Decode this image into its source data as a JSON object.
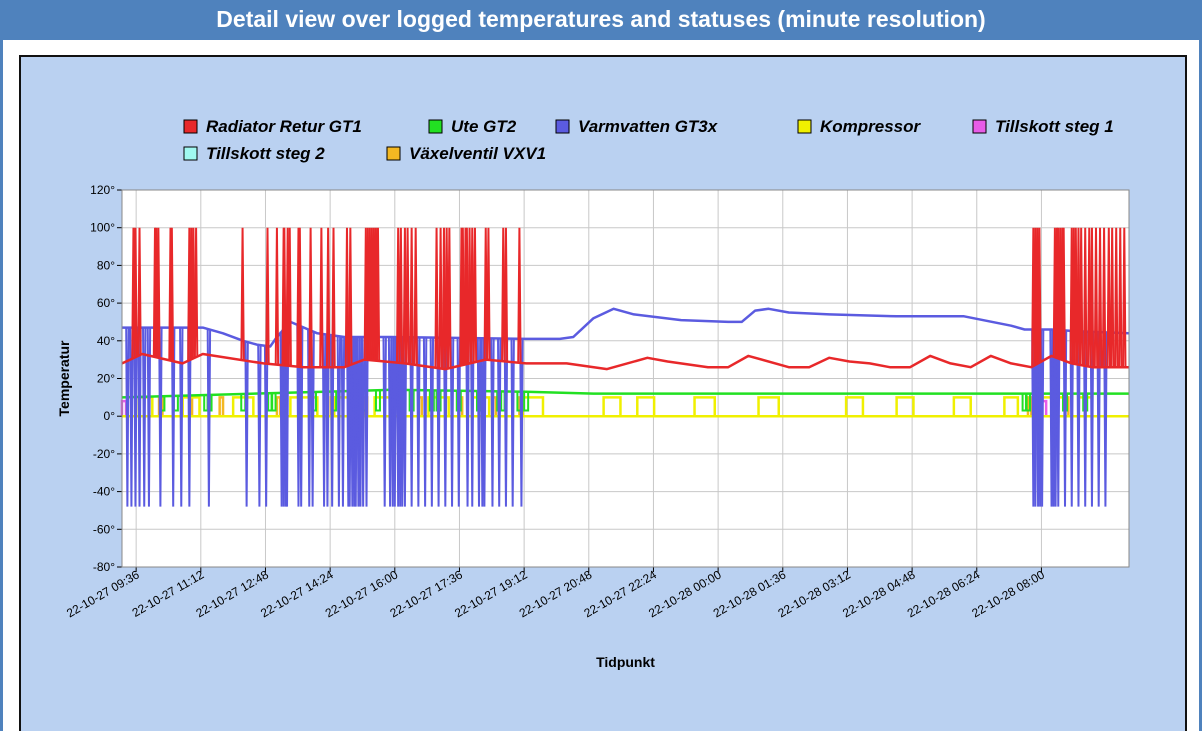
{
  "header": {
    "title": "Detail view over logged temperatures and statuses (minute resolution)"
  },
  "colors": {
    "header_bg": "#4f82bd",
    "panel_bg": "#bad1f1",
    "plot_bg": "#ffffff",
    "grid": "#c8c8c8"
  },
  "chart_data": {
    "type": "line",
    "title": "",
    "xlabel": "Tidpunkt",
    "ylabel": "Temperatur",
    "ylim": [
      -80,
      120
    ],
    "yticks": [
      -80,
      -60,
      -40,
      -20,
      0,
      20,
      40,
      60,
      80,
      100,
      120
    ],
    "ytick_labels": [
      "-80°",
      "-60°",
      "-40°",
      "-20°",
      "0°",
      "20°",
      "40°",
      "60°",
      "80°",
      "100°",
      "120°"
    ],
    "xlim_minutes": [
      0,
      1495
    ],
    "x_unit": "minutes since 22-10-27 09:15",
    "xticks_minutes": [
      21,
      117,
      213,
      309,
      405,
      501,
      597,
      693,
      789,
      885,
      981,
      1077,
      1173,
      1269,
      1365
    ],
    "xtick_labels": [
      "22-10-27 09:36",
      "22-10-27 11:12",
      "22-10-27 12:48",
      "22-10-27 14:24",
      "22-10-27 16:00",
      "22-10-27 17:36",
      "22-10-27 19:12",
      "22-10-27 20:48",
      "22-10-27 22:24",
      "22-10-28 00:00",
      "22-10-28 01:36",
      "22-10-28 03:12",
      "22-10-28 04:48",
      "22-10-28 06:24",
      "22-10-28 08:00"
    ],
    "grid": true,
    "legend_position": "top",
    "series": [
      {
        "name": "Radiator Retur GT1",
        "color": "#e8282a",
        "x": [
          0,
          30,
          90,
          120,
          210,
          270,
          330,
          360,
          420,
          480,
          540,
          600,
          660,
          720,
          780,
          810,
          870,
          900,
          930,
          990,
          1020,
          1050,
          1080,
          1110,
          1140,
          1170,
          1200,
          1230,
          1260,
          1290,
          1320,
          1350,
          1380,
          1410,
          1440,
          1470,
          1495
        ],
        "values": [
          28,
          33,
          28,
          33,
          28,
          26,
          26,
          30,
          28,
          25,
          30,
          28,
          28,
          25,
          31,
          29,
          26,
          26,
          32,
          26,
          26,
          31,
          29,
          28,
          26,
          26,
          32,
          28,
          26,
          32,
          28,
          26,
          32,
          28,
          26,
          26,
          26
        ],
        "spikes_to": 100,
        "spike_x": [
          17,
          20,
          26,
          49,
          51,
          54,
          72,
          74,
          100,
          103,
          106,
          110,
          179,
          216,
          230,
          240,
          241,
          246,
          249,
          262,
          264,
          280,
          296,
          306,
          314,
          334,
          339,
          362,
          365,
          368,
          371,
          374,
          377,
          380,
          410,
          414,
          420,
          424,
          430,
          436,
          467,
          473,
          478,
          482,
          486,
          504,
          506,
          510,
          512,
          516,
          520,
          524,
          540,
          544,
          566,
          570,
          590,
          1353,
          1356,
          1359,
          1362,
          1385,
          1388,
          1390,
          1393,
          1396,
          1398,
          1410,
          1413,
          1416,
          1420,
          1424,
          1430,
          1436,
          1440,
          1446,
          1452,
          1458,
          1465,
          1470,
          1476,
          1482,
          1488
        ]
      },
      {
        "name": "Ute GT2",
        "color": "#22e022",
        "x": [
          0,
          100,
          300,
          400,
          600,
          700,
          900,
          1100,
          1300,
          1400,
          1495
        ],
        "values": [
          10,
          11,
          13,
          14,
          13,
          12,
          12,
          12,
          12,
          12,
          12
        ],
        "dips_to": 3,
        "dip_x": [
          60,
          80,
          125,
          130,
          180,
          220,
          225,
          285,
          315,
          360,
          380,
          430,
          460,
          470,
          500,
          530,
          560,
          565,
          590,
          600,
          1340,
          1345,
          1400,
          1430
        ]
      },
      {
        "name": "Varmvatten GT3x",
        "color": "#5b5be0",
        "x": [
          0,
          80,
          120,
          150,
          180,
          200,
          220,
          230,
          250,
          290,
          330,
          400,
          600,
          650,
          670,
          700,
          730,
          760,
          830,
          900,
          920,
          940,
          960,
          990,
          1050,
          1150,
          1250,
          1320,
          1340,
          1380,
          1420,
          1495
        ],
        "values": [
          47,
          47,
          47,
          44,
          40,
          38,
          37,
          42,
          50,
          44,
          42,
          42,
          41,
          41,
          42,
          52,
          57,
          54,
          51,
          50,
          50,
          56,
          57,
          55,
          54,
          53,
          53,
          48,
          46,
          46,
          45,
          44
        ],
        "spikes_to": -48,
        "spike_x": [
          8,
          14,
          20,
          26,
          33,
          40,
          57,
          76,
          88,
          100,
          129,
          185,
          204,
          214,
          237,
          240,
          243,
          245,
          262,
          266,
          278,
          283,
          300,
          305,
          312,
          322,
          328,
          336,
          338,
          342,
          345,
          347,
          351,
          354,
          358,
          363,
          390,
          398,
          402,
          405,
          410,
          413,
          416,
          420,
          430,
          440,
          450,
          460,
          470,
          480,
          490,
          500,
          513,
          520,
          530,
          535,
          538,
          550,
          560,
          570,
          580,
          593,
          1353,
          1356,
          1360,
          1363,
          1366,
          1380,
          1383,
          1386,
          1390,
          1400,
          1410,
          1420,
          1430,
          1440,
          1450,
          1460
        ]
      },
      {
        "name": "Kompressor",
        "color": "#f0f000",
        "x": [
          0,
          1495
        ],
        "values": [
          0,
          0
        ],
        "pulses_to": 10,
        "pulse_ranges": [
          [
            25,
            45
          ],
          [
            90,
            115
          ],
          [
            165,
            195
          ],
          [
            250,
            290
          ],
          [
            315,
            345
          ],
          [
            375,
            405
          ],
          [
            455,
            485
          ],
          [
            520,
            545
          ],
          [
            595,
            625
          ],
          [
            715,
            740
          ],
          [
            765,
            790
          ],
          [
            850,
            880
          ],
          [
            945,
            975
          ],
          [
            1075,
            1100
          ],
          [
            1150,
            1175
          ],
          [
            1235,
            1260
          ],
          [
            1310,
            1330
          ],
          [
            1360,
            1400
          ],
          [
            1420,
            1440
          ]
        ]
      },
      {
        "name": "Tillskott steg 1",
        "color": "#e85ce8",
        "x": [
          0,
          1495
        ],
        "values": [
          0,
          0
        ],
        "pulses_to": 8,
        "pulse_ranges": [
          [
            0,
            6
          ],
          [
            1360,
            1372
          ]
        ]
      },
      {
        "name": "Tillskott steg 2",
        "color": "#a0f8f0",
        "x": [
          0,
          1495
        ],
        "values": [
          0,
          0
        ]
      },
      {
        "name": "Växelventil VXV1",
        "color": "#f4b822",
        "x": [
          0,
          1495
        ],
        "values": [
          0,
          0
        ],
        "pulses_to": 10,
        "pulse_ranges": [
          [
            55,
            60
          ],
          [
            100,
            104
          ],
          [
            145,
            150
          ],
          [
            230,
            235
          ],
          [
            310,
            315
          ],
          [
            360,
            364
          ],
          [
            400,
            405
          ],
          [
            440,
            445
          ],
          [
            500,
            505
          ],
          [
            550,
            555
          ],
          [
            590,
            595
          ],
          [
            1345,
            1350
          ],
          [
            1400,
            1405
          ]
        ]
      }
    ]
  }
}
